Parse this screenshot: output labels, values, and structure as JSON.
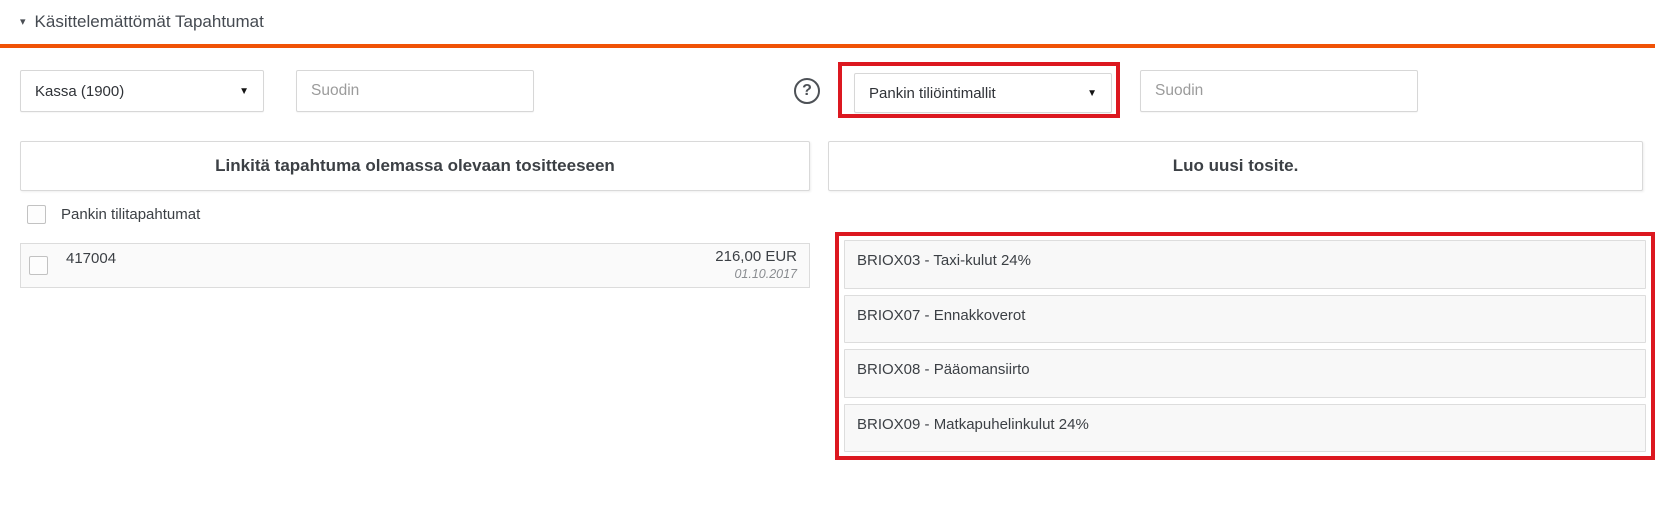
{
  "header": {
    "collapse_icon": "▾",
    "title": "Käsittelemättömät Tapahtumat"
  },
  "filters": {
    "account_select": {
      "value": "Kassa (1900)",
      "caret_icon": "▼"
    },
    "left_filter": {
      "placeholder": "Suodin"
    },
    "help_icon": "?",
    "templates_select": {
      "value": "Pankin tiliöintimallit",
      "caret_icon": "▼"
    },
    "right_filter": {
      "placeholder": "Suodin"
    }
  },
  "panels": {
    "left": {
      "action_label": "Linkitä tapahtuma olemassa olevaan tositteeseen",
      "select_all_label": "Pankin tilitapahtumat",
      "transactions": [
        {
          "id": "417004",
          "amount": "216,00 EUR",
          "date": "01.10.2017"
        }
      ]
    },
    "right": {
      "action_label": "Luo uusi tosite.",
      "templates": [
        {
          "label": "BRIOX03 - Taxi-kulut 24%"
        },
        {
          "label": "BRIOX07 - Ennakkoverot"
        },
        {
          "label": "BRIOX08 - Pääomansiirto"
        },
        {
          "label": "BRIOX09 - Matkapuhelinkulut 24%"
        }
      ]
    }
  },
  "colors": {
    "accent_orange": "#f05206",
    "annotation_red": "#dc1820"
  }
}
